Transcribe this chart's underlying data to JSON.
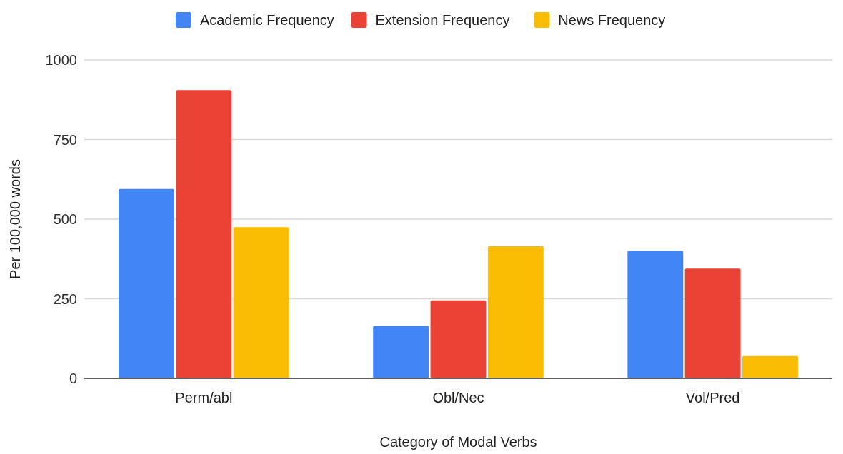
{
  "chart_data": {
    "type": "bar",
    "xlabel": "Category of Modal Verbs",
    "ylabel": "Per 100,000 words",
    "categories": [
      "Perm/abl",
      "Obl/Nec",
      "Vol/Pred"
    ],
    "series": [
      {
        "name": "Academic Frequency",
        "color": "#4285f4",
        "values": [
          595,
          165,
          400
        ]
      },
      {
        "name": "Extension Frequency",
        "color": "#ea4335",
        "values": [
          905,
          245,
          345
        ]
      },
      {
        "name": "News Frequency",
        "color": "#fbbc04",
        "values": [
          475,
          415,
          70
        ]
      }
    ],
    "ylim": [
      0,
      1000
    ],
    "yticks": [
      0,
      250,
      500,
      750,
      1000
    ],
    "grid": "y",
    "legend": "top"
  }
}
